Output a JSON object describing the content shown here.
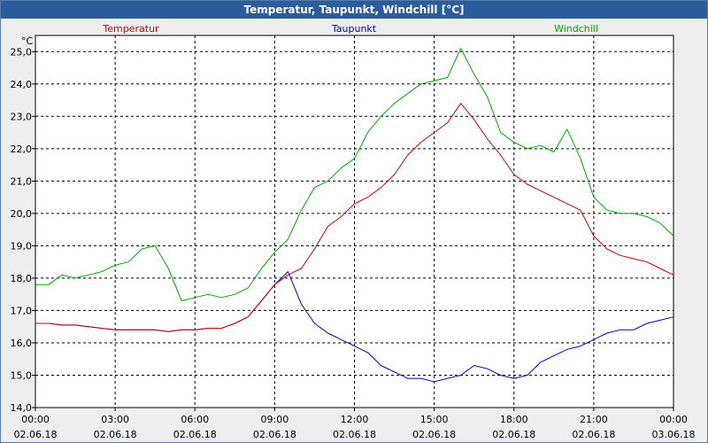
{
  "window": {
    "title": "Temperatur, Taupunkt, Windchill [°C]"
  },
  "chart_data": {
    "type": "line",
    "title": "Temperatur, Taupunkt, Windchill [°C]",
    "ylabel": "°C",
    "ylim": [
      14.0,
      25.5
    ],
    "xlim": [
      0,
      24
    ],
    "y_ticks": [
      "14,0",
      "15,0",
      "16,0",
      "17,0",
      "18,0",
      "19,0",
      "20,0",
      "21,0",
      "22,0",
      "23,0",
      "24,0",
      "25,0"
    ],
    "x_ticks": [
      {
        "time": "00:00",
        "date": "02.06.18"
      },
      {
        "time": "03:00",
        "date": "02.06.18"
      },
      {
        "time": "06:00",
        "date": "02.06.18"
      },
      {
        "time": "09:00",
        "date": "02.06.18"
      },
      {
        "time": "12:00",
        "date": "02.06.18"
      },
      {
        "time": "15:00",
        "date": "02.06.18"
      },
      {
        "time": "18:00",
        "date": "02.06.18"
      },
      {
        "time": "21:00",
        "date": "02.06.18"
      },
      {
        "time": "00:00",
        "date": "03.06.18"
      }
    ],
    "grid": true,
    "series": [
      {
        "name": "Temperatur",
        "color": "#cc0000",
        "points": [
          [
            0,
            16.6
          ],
          [
            0.5,
            16.6
          ],
          [
            1,
            16.55
          ],
          [
            1.5,
            16.55
          ],
          [
            2,
            16.5
          ],
          [
            2.5,
            16.45
          ],
          [
            3,
            16.4
          ],
          [
            3.5,
            16.4
          ],
          [
            4,
            16.4
          ],
          [
            4.5,
            16.4
          ],
          [
            5,
            16.35
          ],
          [
            5.5,
            16.4
          ],
          [
            6,
            16.4
          ],
          [
            6.5,
            16.45
          ],
          [
            7,
            16.45
          ],
          [
            7.5,
            16.6
          ],
          [
            8,
            16.8
          ],
          [
            8.5,
            17.3
          ],
          [
            9,
            17.8
          ],
          [
            9.5,
            18.1
          ],
          [
            10,
            18.3
          ],
          [
            10.5,
            18.9
          ],
          [
            11,
            19.6
          ],
          [
            11.5,
            19.9
          ],
          [
            12,
            20.3
          ],
          [
            12.5,
            20.5
          ],
          [
            13,
            20.8
          ],
          [
            13.5,
            21.2
          ],
          [
            14,
            21.8
          ],
          [
            14.5,
            22.2
          ],
          [
            15,
            22.5
          ],
          [
            15.5,
            22.8
          ],
          [
            16,
            23.4
          ],
          [
            16.5,
            22.9
          ],
          [
            17,
            22.3
          ],
          [
            17.5,
            21.8
          ],
          [
            18,
            21.2
          ],
          [
            18.5,
            20.9
          ],
          [
            19,
            20.7
          ],
          [
            19.5,
            20.5
          ],
          [
            20,
            20.3
          ],
          [
            20.5,
            20.1
          ],
          [
            21,
            19.3
          ],
          [
            21.5,
            18.9
          ],
          [
            22,
            18.7
          ],
          [
            22.5,
            18.6
          ],
          [
            23,
            18.5
          ],
          [
            23.5,
            18.3
          ],
          [
            24,
            18.1
          ]
        ]
      },
      {
        "name": "Taupunkt",
        "color": "#0000cc",
        "points": [
          [
            0,
            16.6
          ],
          [
            0.5,
            16.6
          ],
          [
            1,
            16.55
          ],
          [
            1.5,
            16.55
          ],
          [
            2,
            16.5
          ],
          [
            2.5,
            16.45
          ],
          [
            3,
            16.4
          ],
          [
            3.5,
            16.4
          ],
          [
            4,
            16.4
          ],
          [
            4.5,
            16.4
          ],
          [
            5,
            16.35
          ],
          [
            5.5,
            16.4
          ],
          [
            6,
            16.4
          ],
          [
            6.5,
            16.45
          ],
          [
            7,
            16.45
          ],
          [
            7.5,
            16.6
          ],
          [
            8,
            16.8
          ],
          [
            8.5,
            17.3
          ],
          [
            9,
            17.8
          ],
          [
            9.5,
            18.2
          ],
          [
            10,
            17.2
          ],
          [
            10.5,
            16.6
          ],
          [
            11,
            16.3
          ],
          [
            11.5,
            16.1
          ],
          [
            12,
            15.9
          ],
          [
            12.5,
            15.7
          ],
          [
            13,
            15.3
          ],
          [
            13.5,
            15.1
          ],
          [
            14,
            14.9
          ],
          [
            14.5,
            14.9
          ],
          [
            15,
            14.8
          ],
          [
            15.5,
            14.9
          ],
          [
            16,
            15.0
          ],
          [
            16.5,
            15.3
          ],
          [
            17,
            15.2
          ],
          [
            17.5,
            15.0
          ],
          [
            18,
            14.9
          ],
          [
            18.5,
            15.0
          ],
          [
            19,
            15.4
          ],
          [
            19.5,
            15.6
          ],
          [
            20,
            15.8
          ],
          [
            20.5,
            15.9
          ],
          [
            21,
            16.1
          ],
          [
            21.5,
            16.3
          ],
          [
            22,
            16.4
          ],
          [
            22.5,
            16.4
          ],
          [
            23,
            16.6
          ],
          [
            23.5,
            16.7
          ],
          [
            24,
            16.8
          ]
        ]
      },
      {
        "name": "Windchill",
        "color": "#00aa00",
        "points": [
          [
            0,
            17.8
          ],
          [
            0.5,
            17.8
          ],
          [
            1,
            18.1
          ],
          [
            1.5,
            18.0
          ],
          [
            2,
            18.1
          ],
          [
            2.5,
            18.2
          ],
          [
            3,
            18.4
          ],
          [
            3.5,
            18.5
          ],
          [
            4,
            18.9
          ],
          [
            4.5,
            19.0
          ],
          [
            5,
            18.3
          ],
          [
            5.5,
            17.3
          ],
          [
            6,
            17.4
          ],
          [
            6.5,
            17.5
          ],
          [
            7,
            17.4
          ],
          [
            7.5,
            17.5
          ],
          [
            8,
            17.7
          ],
          [
            8.5,
            18.3
          ],
          [
            9,
            18.8
          ],
          [
            9.5,
            19.2
          ],
          [
            10,
            20.1
          ],
          [
            10.5,
            20.8
          ],
          [
            11,
            21.0
          ],
          [
            11.5,
            21.4
          ],
          [
            12,
            21.7
          ],
          [
            12.5,
            22.5
          ],
          [
            13,
            23.0
          ],
          [
            13.5,
            23.4
          ],
          [
            14,
            23.7
          ],
          [
            14.5,
            24.0
          ],
          [
            15,
            24.1
          ],
          [
            15.5,
            24.2
          ],
          [
            16,
            25.1
          ],
          [
            16.5,
            24.3
          ],
          [
            17,
            23.6
          ],
          [
            17.5,
            22.5
          ],
          [
            18,
            22.2
          ],
          [
            18.5,
            22.0
          ],
          [
            19,
            22.1
          ],
          [
            19.5,
            21.9
          ],
          [
            20,
            22.6
          ],
          [
            20.5,
            21.7
          ],
          [
            21,
            20.5
          ],
          [
            21.5,
            20.1
          ],
          [
            22,
            20.0
          ],
          [
            22.5,
            20.0
          ],
          [
            23,
            19.9
          ],
          [
            23.5,
            19.7
          ],
          [
            24,
            19.3
          ]
        ]
      }
    ]
  }
}
